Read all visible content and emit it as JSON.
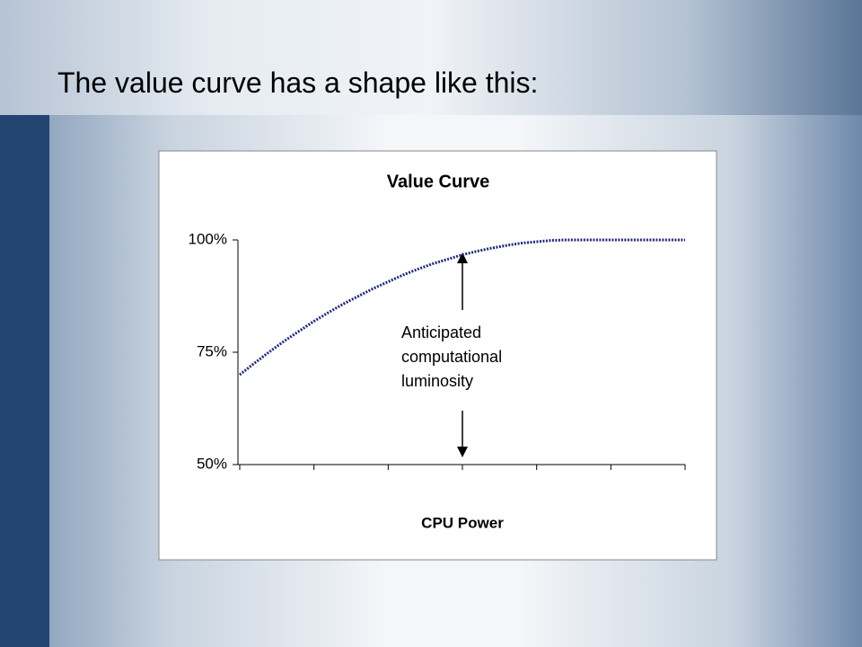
{
  "slide": {
    "title": "The value curve has a shape like this:"
  },
  "chart_data": {
    "type": "line",
    "title": "Value Curve",
    "x_label": "CPU Power",
    "x": [
      0,
      2,
      4,
      6,
      8,
      10,
      12,
      14,
      16,
      18,
      20,
      22,
      24,
      26,
      28,
      30,
      32,
      34,
      36,
      38,
      40,
      42,
      44,
      46,
      48,
      50,
      52,
      54,
      56,
      58,
      60
    ],
    "xlim": [
      0,
      60
    ],
    "series": [
      {
        "color": "#1f2a7a",
        "values": [
          70,
          72.6,
          75.1,
          77.5,
          79.7,
          81.9,
          83.9,
          85.8,
          87.5,
          89.2,
          90.7,
          92.2,
          93.5,
          94.7,
          95.7,
          96.7,
          97.5,
          98.2,
          98.8,
          99.3,
          99.6,
          99.9,
          100,
          100,
          100,
          100,
          100,
          100,
          100,
          100,
          100
        ]
      }
    ],
    "ylim": [
      50,
      100
    ],
    "yticks": [
      {
        "value": 50,
        "label": "50%"
      },
      {
        "value": 75,
        "label": "75%"
      },
      {
        "value": 100,
        "label": "100%"
      }
    ],
    "annotation": [
      "Anticipated",
      "computational",
      "luminosity"
    ]
  }
}
